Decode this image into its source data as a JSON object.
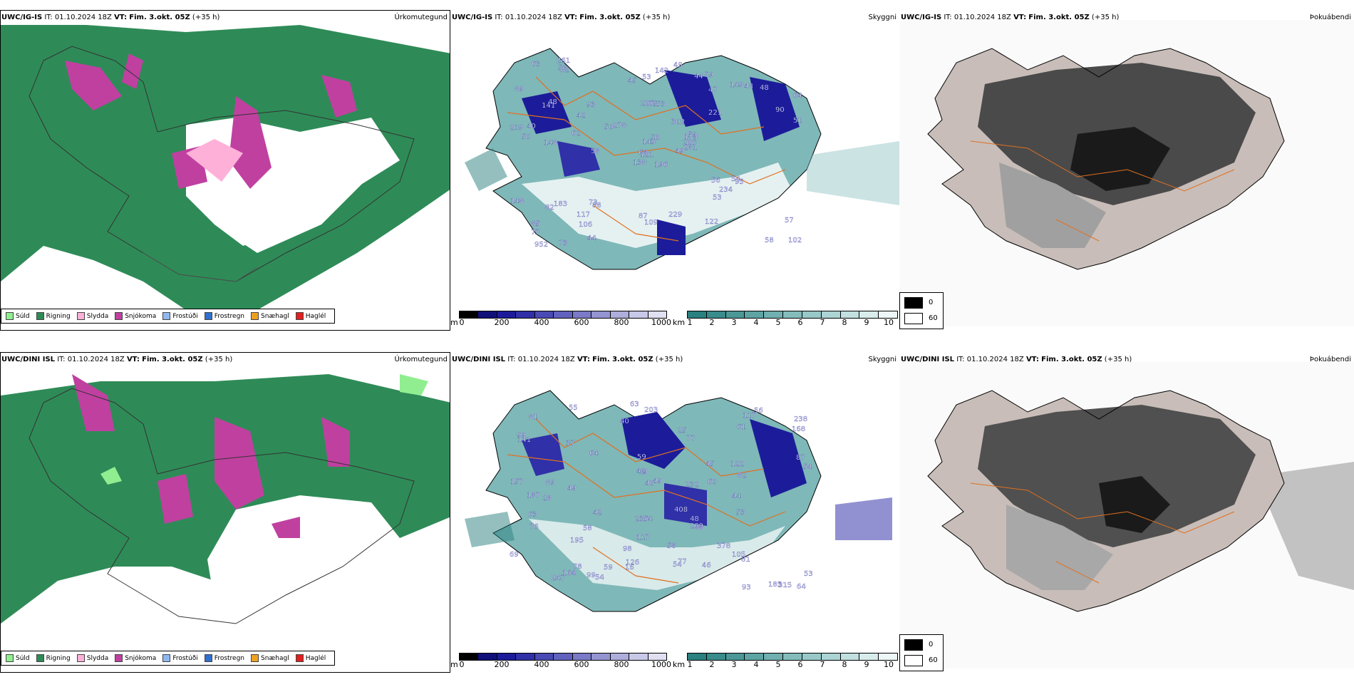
{
  "rows": [
    {
      "model": "UWC/IG-IS",
      "it_label": "IT:",
      "it_value": "01.10.2024 18Z",
      "vt_label": "VT:",
      "vt_value": "Fim. 3.okt. 05Z",
      "lead": "(+35 h)",
      "labels": [
        {
          "v": "196"
        },
        {
          "v": "141"
        },
        {
          "v": "121"
        },
        {
          "v": "85"
        },
        {
          "v": "179"
        },
        {
          "v": "88"
        },
        {
          "v": "59"
        },
        {
          "v": "53"
        },
        {
          "v": "47"
        },
        {
          "v": "49"
        },
        {
          "v": "62"
        },
        {
          "v": "102"
        },
        {
          "v": "148"
        },
        {
          "v": "64"
        },
        {
          "v": "138"
        },
        {
          "v": "221"
        },
        {
          "v": "73"
        },
        {
          "v": "206"
        },
        {
          "v": "302"
        },
        {
          "v": "183"
        },
        {
          "v": "278"
        },
        {
          "v": "77"
        },
        {
          "v": "106"
        },
        {
          "v": "75"
        },
        {
          "v": "59"
        },
        {
          "v": "95"
        },
        {
          "v": "48"
        },
        {
          "v": "53"
        },
        {
          "v": "50"
        },
        {
          "v": "56"
        },
        {
          "v": "51"
        },
        {
          "v": "68"
        },
        {
          "v": "87"
        },
        {
          "v": "145"
        },
        {
          "v": "93"
        },
        {
          "v": "149"
        },
        {
          "v": "73"
        },
        {
          "v": "58"
        },
        {
          "v": "57"
        },
        {
          "v": "54"
        },
        {
          "v": "49"
        },
        {
          "v": "50"
        },
        {
          "v": "62"
        },
        {
          "v": "53"
        },
        {
          "v": "44"
        },
        {
          "v": "209"
        },
        {
          "v": "206"
        },
        {
          "v": "952"
        },
        {
          "v": "109"
        },
        {
          "v": "281"
        },
        {
          "v": "82"
        },
        {
          "v": "90"
        },
        {
          "v": "89"
        },
        {
          "v": "234"
        },
        {
          "v": "122"
        },
        {
          "v": "117"
        },
        {
          "v": "56"
        },
        {
          "v": "63"
        },
        {
          "v": "229"
        },
        {
          "v": "48"
        },
        {
          "v": "142"
        },
        {
          "v": "58"
        },
        {
          "v": "40"
        },
        {
          "v": "42"
        },
        {
          "v": "48"
        },
        {
          "v": "261"
        },
        {
          "v": "44"
        },
        {
          "v": "45"
        },
        {
          "v": "50"
        },
        {
          "v": "148"
        }
      ]
    },
    {
      "model": "UWC/DINI ISL",
      "it_label": "IT:",
      "it_value": "01.10.2024 18Z",
      "vt_label": "VT:",
      "vt_value": "Fim. 3.okt. 05Z",
      "lead": "(+35 h)",
      "labels": [
        {
          "v": "157"
        },
        {
          "v": "203"
        },
        {
          "v": "122"
        },
        {
          "v": "238"
        },
        {
          "v": "99"
        },
        {
          "v": "185"
        },
        {
          "v": "28"
        },
        {
          "v": "77"
        },
        {
          "v": "59"
        },
        {
          "v": "56"
        },
        {
          "v": "49"
        },
        {
          "v": "53"
        },
        {
          "v": "63"
        },
        {
          "v": "141"
        },
        {
          "v": "37"
        },
        {
          "v": "195"
        },
        {
          "v": "77"
        },
        {
          "v": "187"
        },
        {
          "v": "408"
        },
        {
          "v": "117"
        },
        {
          "v": "378"
        },
        {
          "v": "81"
        },
        {
          "v": "168"
        },
        {
          "v": "89"
        },
        {
          "v": "78"
        },
        {
          "v": "40"
        },
        {
          "v": "48"
        },
        {
          "v": "55"
        },
        {
          "v": "54"
        },
        {
          "v": "54"
        },
        {
          "v": "63"
        },
        {
          "v": "93"
        },
        {
          "v": "232"
        },
        {
          "v": "247"
        },
        {
          "v": "99"
        },
        {
          "v": "76"
        },
        {
          "v": "82"
        },
        {
          "v": "81"
        },
        {
          "v": "59"
        },
        {
          "v": "64"
        },
        {
          "v": "58"
        },
        {
          "v": "60"
        },
        {
          "v": "53"
        },
        {
          "v": "54"
        },
        {
          "v": "54"
        },
        {
          "v": "58"
        },
        {
          "v": "61"
        },
        {
          "v": "69"
        },
        {
          "v": "126"
        },
        {
          "v": "49"
        },
        {
          "v": "45"
        },
        {
          "v": "105"
        },
        {
          "v": "88"
        },
        {
          "v": "44"
        },
        {
          "v": "46"
        },
        {
          "v": "40"
        },
        {
          "v": "209"
        },
        {
          "v": "42"
        },
        {
          "v": "117"
        },
        {
          "v": "25"
        },
        {
          "v": "236"
        },
        {
          "v": "164"
        },
        {
          "v": "87"
        },
        {
          "v": "64"
        },
        {
          "v": "315"
        },
        {
          "v": "89"
        },
        {
          "v": "98"
        },
        {
          "v": "42"
        },
        {
          "v": "16"
        }
      ]
    }
  ],
  "panel_titles": {
    "precip": "Úrkomutegund",
    "vis": "Skyggni",
    "fog": "Þokuábendi"
  },
  "precip_legend": [
    {
      "label": "Súld",
      "color": "#90ee90"
    },
    {
      "label": "Rigning",
      "color": "#2e8b57"
    },
    {
      "label": "Slydda",
      "color": "#ffb0d8"
    },
    {
      "label": "Snjókoma",
      "color": "#c040a0"
    },
    {
      "label": "Frostúði",
      "color": "#90b8f0"
    },
    {
      "label": "Frostregn",
      "color": "#3070d0"
    },
    {
      "label": "Snæhagl",
      "color": "#f0a020"
    },
    {
      "label": "Haglél",
      "color": "#e02020"
    }
  ],
  "ceiling_bar": {
    "unit": "m",
    "ticks": [
      "0",
      "200",
      "400",
      "600",
      "800",
      "1000"
    ],
    "colors": [
      "#000000",
      "#10107a",
      "#1c1c9a",
      "#3030a8",
      "#4a4ab4",
      "#6262be",
      "#7a7ac8",
      "#9494d2",
      "#aeaedc",
      "#c8c8e8",
      "#e0e0f2"
    ]
  },
  "vis_bar": {
    "unit": "km",
    "ticks": [
      "1",
      "2",
      "3",
      "4",
      "5",
      "6",
      "7",
      "8",
      "9",
      "10"
    ],
    "colors": [
      "#2b8080",
      "#3a8c8c",
      "#4c9898",
      "#5ea4a4",
      "#70b0b0",
      "#84bcbc",
      "#98c8c8",
      "#acd4d4",
      "#c2e0e0",
      "#d8ecec",
      "#eef7f7"
    ]
  },
  "fog_key": {
    "dark_value": "0",
    "light_value": "60"
  }
}
